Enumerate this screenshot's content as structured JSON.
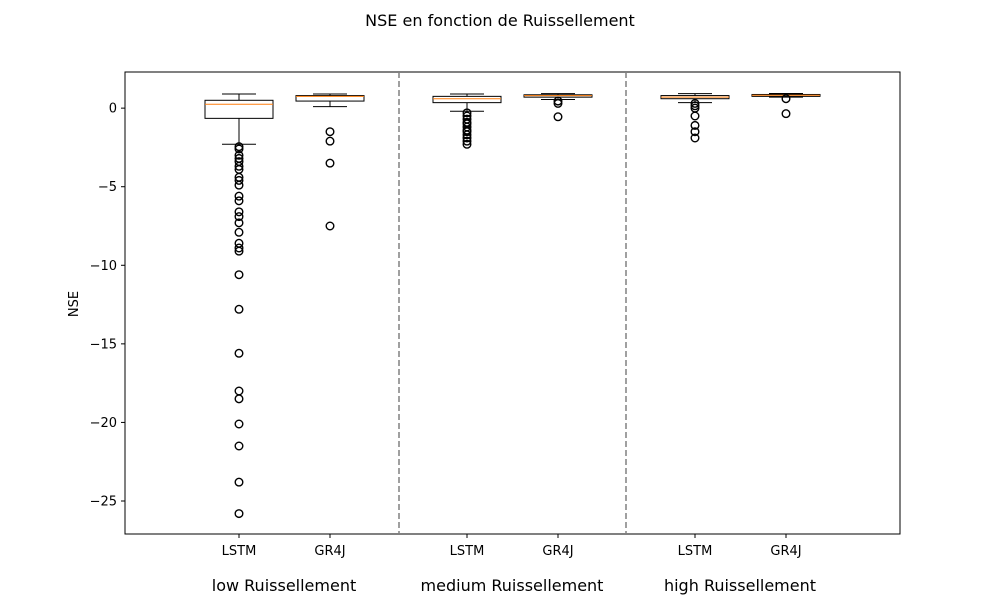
{
  "chart_data": {
    "type": "box",
    "title": "NSE en fonction de Ruissellement",
    "ylabel": "NSE",
    "ylim": [
      -27.1,
      2.3
    ],
    "yticks": [
      0,
      -5,
      -10,
      -15,
      -20,
      -25
    ],
    "ytick_labels": [
      "0",
      "−5",
      "−10",
      "−15",
      "−20",
      "−25"
    ],
    "groups": [
      {
        "label": "low Ruissellement",
        "boxes": [
          {
            "name": "LSTM",
            "whisker_low": -2.3,
            "q1": -0.65,
            "median": 0.25,
            "q3": 0.5,
            "whisker_high": 0.9,
            "outliers": [
              -2.45,
              -2.6,
              -3.0,
              -3.2,
              -3.4,
              -3.7,
              -3.9,
              -4.4,
              -4.6,
              -4.9,
              -5.6,
              -5.9,
              -6.6,
              -6.9,
              -7.3,
              -7.9,
              -8.6,
              -8.9,
              -9.1,
              -10.6,
              -12.8,
              -15.6,
              -18.0,
              -18.5,
              -20.1,
              -21.5,
              -23.8,
              -25.8
            ]
          },
          {
            "name": "GR4J",
            "whisker_low": 0.1,
            "q1": 0.45,
            "median": 0.75,
            "q3": 0.8,
            "whisker_high": 0.9,
            "outliers": [
              -1.5,
              -2.1,
              -3.5,
              -7.5
            ]
          }
        ]
      },
      {
        "label": "medium Ruissellement",
        "boxes": [
          {
            "name": "LSTM",
            "whisker_low": -0.2,
            "q1": 0.35,
            "median": 0.6,
            "q3": 0.75,
            "whisker_high": 0.9,
            "outliers": [
              -0.3,
              -0.5,
              -0.7,
              -0.9,
              -1.0,
              -1.2,
              -1.4,
              -1.5,
              -1.7,
              -1.9,
              -2.1,
              -2.3
            ]
          },
          {
            "name": "GR4J",
            "whisker_low": 0.55,
            "q1": 0.7,
            "median": 0.8,
            "q3": 0.85,
            "whisker_high": 0.92,
            "outliers": [
              0.45,
              0.3,
              -0.55
            ]
          }
        ]
      },
      {
        "label": "high Ruissellement",
        "boxes": [
          {
            "name": "LSTM",
            "whisker_low": 0.35,
            "q1": 0.6,
            "median": 0.7,
            "q3": 0.8,
            "whisker_high": 0.92,
            "outliers": [
              0.3,
              0.15,
              0.0,
              -0.5,
              -1.1,
              -1.5,
              -1.9
            ]
          },
          {
            "name": "GR4J",
            "whisker_low": 0.7,
            "q1": 0.75,
            "median": 0.82,
            "q3": 0.87,
            "whisker_high": 0.93,
            "outliers": [
              0.6,
              -0.35
            ]
          }
        ]
      }
    ],
    "separators": [
      "dashed",
      "dashed"
    ],
    "grid": false,
    "colors": {
      "box": "#000000",
      "median": "#ff7f0e",
      "separator": "#808080"
    }
  }
}
